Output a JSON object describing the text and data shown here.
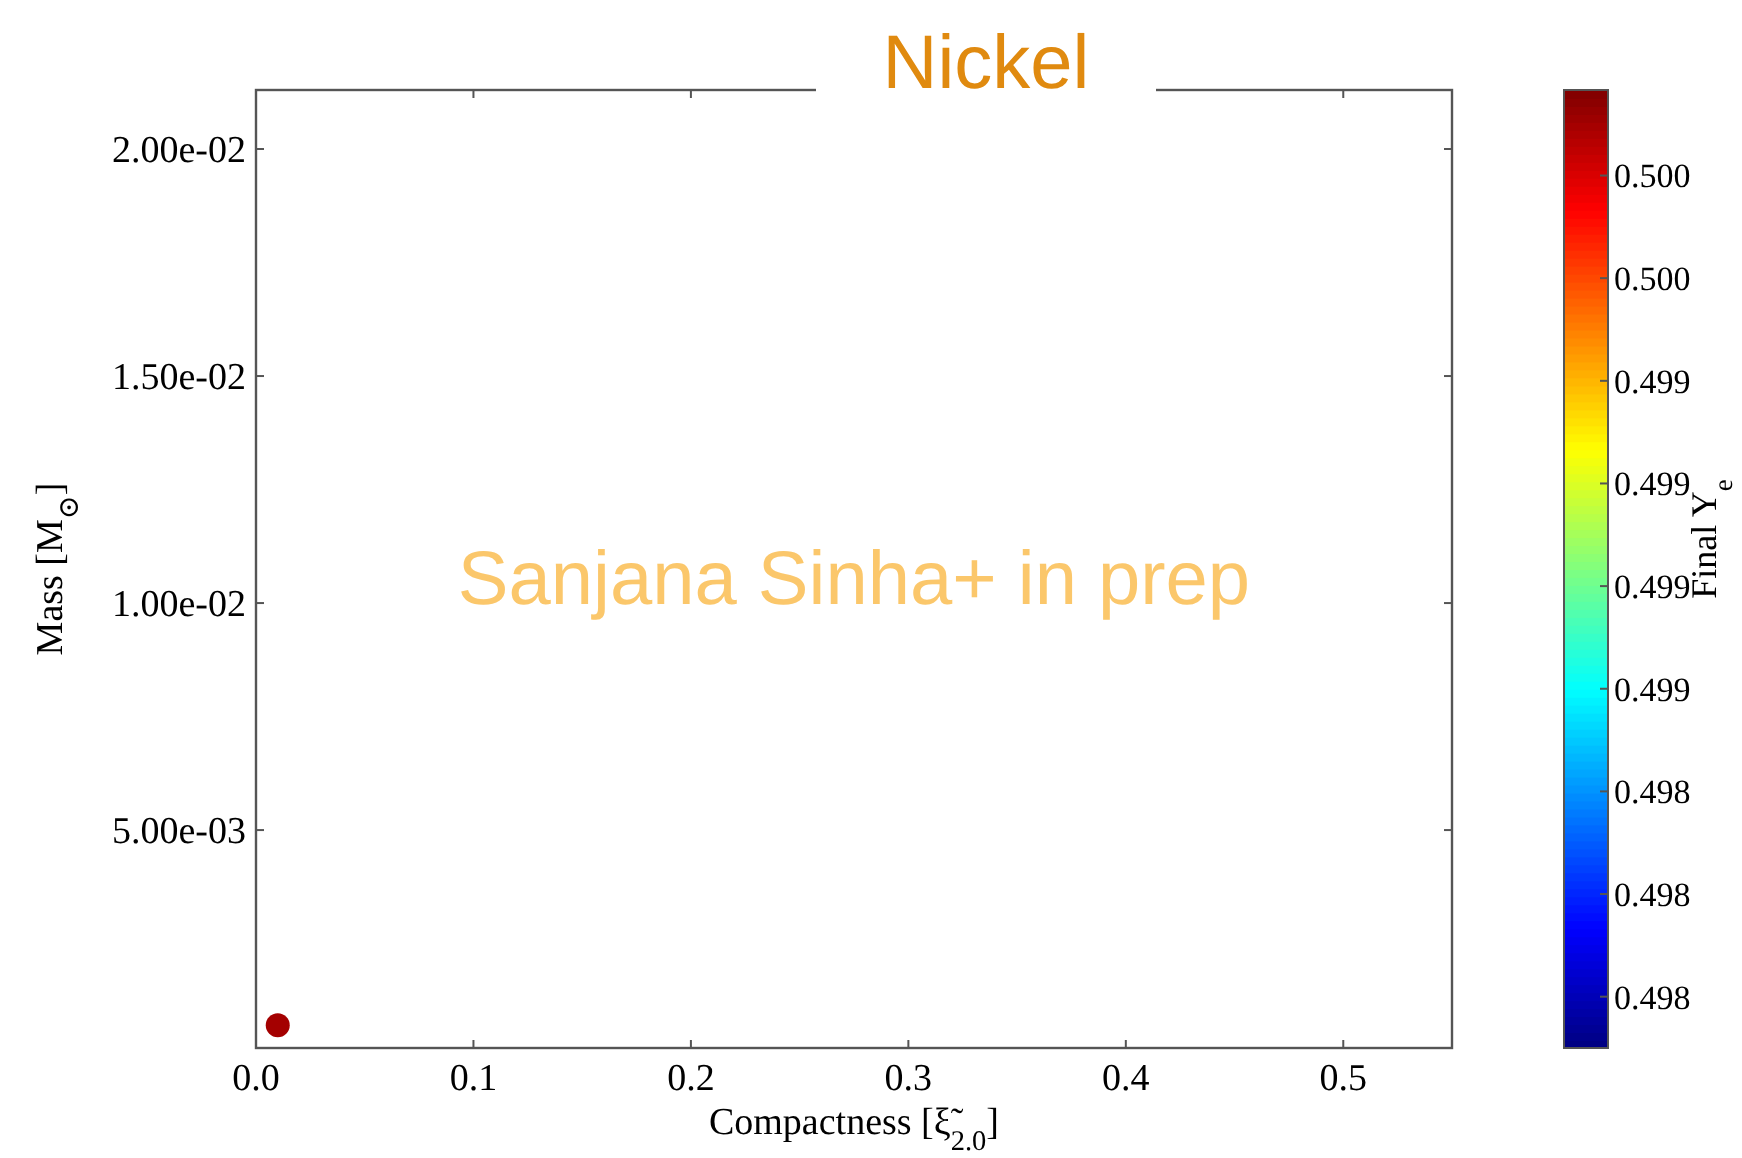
{
  "chart_data": {
    "type": "scatter",
    "title": "Nickel",
    "xlabel": "Compactness [ξ̃$_{2.0}$]",
    "ylabel": "Mass [M$_{⊙}$]",
    "clabel": "Final Y$_{e}$",
    "annotations": [
      "Sanjana Sinha+ in prep"
    ],
    "x": [
      0.01
    ],
    "values": [
      0.0007
    ],
    "cvalues": [
      0.5002
    ],
    "xlim": [
      0,
      0.55
    ],
    "xticks": [
      {
        "value": 0,
        "label": "0.0"
      },
      {
        "value": 0.1,
        "label": "0.1"
      },
      {
        "value": 0.2,
        "label": "0.2"
      },
      {
        "value": 0.3,
        "label": "0.3"
      },
      {
        "value": 0.4,
        "label": "0.4"
      },
      {
        "value": 0.5,
        "label": "0.5"
      }
    ],
    "ylim": [
      0.0002,
      0.0213
    ],
    "yticks": [
      {
        "value": 0.005,
        "label": "5.00e-03"
      },
      {
        "value": 0.01,
        "label": "1.00e-02"
      },
      {
        "value": 0.015,
        "label": "1.50e-02"
      },
      {
        "value": 0.02,
        "label": "2.00e-02"
      }
    ],
    "clim": [
      0.4975,
      0.5003
    ],
    "cticks": [
      {
        "value": 0.49765,
        "label": "0.498"
      },
      {
        "value": 0.49795,
        "label": "0.498"
      },
      {
        "value": 0.49825,
        "label": "0.498"
      },
      {
        "value": 0.49855,
        "label": "0.499"
      },
      {
        "value": 0.49885,
        "label": "0.499"
      },
      {
        "value": 0.49915,
        "label": "0.499"
      },
      {
        "value": 0.49945,
        "label": "0.499"
      },
      {
        "value": 0.49975,
        "label": "0.500"
      },
      {
        "value": 0.50005,
        "label": "0.500"
      }
    ],
    "marker": "circle",
    "grid": false
  }
}
